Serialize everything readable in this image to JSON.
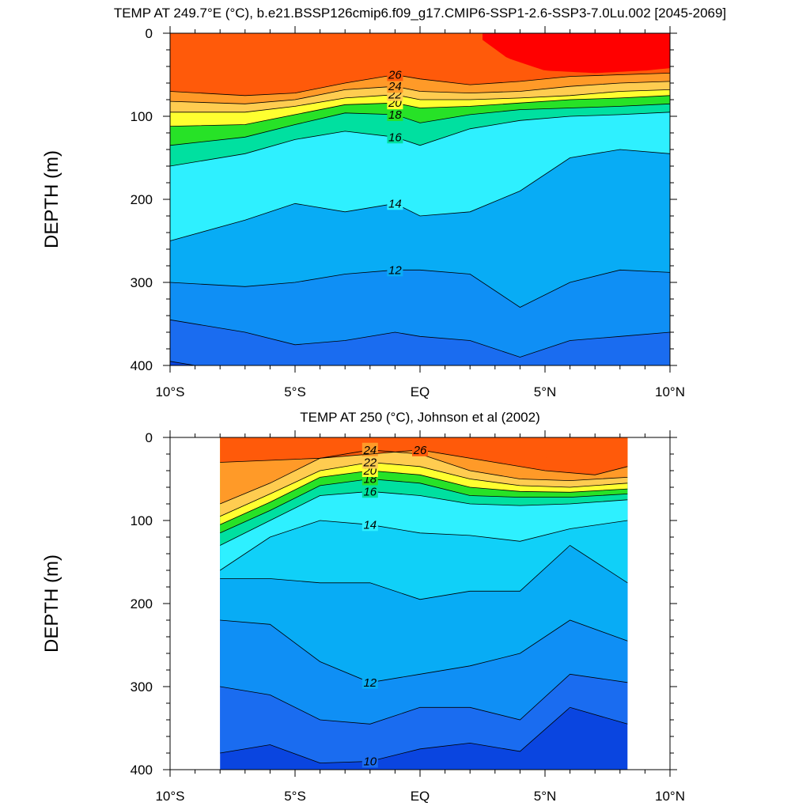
{
  "chart_data": [
    {
      "type": "contour",
      "title": "TEMP AT 249.7°E (°C), b.e21.BSSP126cmip6.f09_g17.CMIP6-SSP1-2.6-SSP3-7.0Lu.002 [2045-2069]",
      "xlabel": "",
      "ylabel": "DEPTH (m)",
      "xlim": [
        -10,
        10
      ],
      "ylim": [
        400,
        0
      ],
      "x_ticks": [
        -10,
        -5,
        0,
        5,
        10
      ],
      "x_tick_labels": [
        "10°S",
        "5°S",
        "EQ",
        "5°N",
        "10°N"
      ],
      "y_ticks": [
        0,
        100,
        200,
        300,
        400
      ],
      "y_tick_labels": [
        "0",
        "100",
        "200",
        "300",
        "400"
      ],
      "data_extent_x": [
        -10,
        10
      ],
      "isotherms": [
        {
          "value": 26,
          "label": "26",
          "x": [
            -10,
            -7,
            -5,
            -3,
            -1,
            0,
            2,
            4,
            6,
            8,
            10
          ],
          "y": [
            70,
            75,
            72,
            60,
            50,
            55,
            62,
            58,
            52,
            50,
            48
          ]
        },
        {
          "value": 24,
          "label": "24",
          "x": [
            -10,
            -7,
            -5,
            -3,
            -1,
            0,
            2,
            4,
            6,
            8,
            10
          ],
          "y": [
            82,
            85,
            80,
            68,
            64,
            70,
            72,
            70,
            64,
            60,
            58
          ]
        },
        {
          "value": 22,
          "label": "22",
          "x": [
            -10,
            -7,
            -5,
            -3,
            -1,
            0,
            2,
            4,
            6,
            8,
            10
          ],
          "y": [
            95,
            95,
            88,
            78,
            74,
            80,
            80,
            78,
            75,
            70,
            68
          ]
        },
        {
          "value": 20,
          "label": "20",
          "x": [
            -10,
            -7,
            -5,
            -3,
            -1,
            0,
            2,
            4,
            6,
            8,
            10
          ],
          "y": [
            112,
            110,
            98,
            86,
            84,
            90,
            88,
            84,
            80,
            78,
            75
          ]
        },
        {
          "value": 18,
          "label": "18",
          "x": [
            -10,
            -7,
            -5,
            -3,
            -1,
            0,
            2,
            4,
            6,
            8,
            10
          ],
          "y": [
            135,
            125,
            110,
            96,
            98,
            108,
            98,
            92,
            90,
            88,
            85
          ]
        },
        {
          "value": 16,
          "label": "16",
          "x": [
            -10,
            -7,
            -5,
            -3,
            -1,
            0,
            2,
            4,
            6,
            8,
            10
          ],
          "y": [
            160,
            145,
            128,
            118,
            125,
            135,
            115,
            105,
            100,
            98,
            95
          ]
        },
        {
          "value": 14,
          "label": "14",
          "x": [
            -10,
            -7,
            -5,
            -3,
            -1,
            0,
            2,
            4,
            6,
            8,
            10
          ],
          "y": [
            250,
            225,
            205,
            215,
            205,
            220,
            215,
            190,
            150,
            140,
            145
          ]
        },
        {
          "value": 12,
          "label": "12",
          "x": [
            -10,
            -7,
            -5,
            -3,
            -1,
            0,
            2,
            4,
            6,
            8,
            10
          ],
          "y": [
            300,
            305,
            300,
            290,
            285,
            285,
            290,
            330,
            300,
            285,
            288
          ]
        },
        {
          "value": 11,
          "label": "",
          "x": [
            -10,
            -7,
            -5,
            -3,
            -1,
            0,
            2,
            4,
            6,
            8,
            10
          ],
          "y": [
            345,
            360,
            375,
            370,
            360,
            365,
            370,
            390,
            370,
            365,
            360
          ]
        },
        {
          "value": 10,
          "label": "",
          "x": [
            -10,
            -9
          ],
          "y": [
            395,
            400
          ]
        }
      ],
      "regions": [
        {
          "temp_min": 28,
          "x": [
            2.5,
            3.5,
            5,
            7,
            9,
            10
          ],
          "y": [
            8,
            30,
            45,
            48,
            45,
            42
          ],
          "description": "warm core north of equator, upper 45 m"
        }
      ],
      "colorbar": {
        "shown": false
      }
    },
    {
      "type": "contour",
      "title": "TEMP AT 250 (°C), Johnson et al (2002)",
      "xlabel": "",
      "ylabel": "DEPTH (m)",
      "xlim": [
        -10,
        10
      ],
      "ylim": [
        400,
        0
      ],
      "x_ticks": [
        -10,
        -5,
        0,
        5,
        10
      ],
      "x_tick_labels": [
        "10°S",
        "5°S",
        "EQ",
        "5°N",
        "10°N"
      ],
      "y_ticks": [
        0,
        100,
        200,
        300,
        400
      ],
      "y_tick_labels": [
        "0",
        "100",
        "200",
        "300",
        "400"
      ],
      "data_extent_x": [
        -8,
        8.3
      ],
      "isotherms": [
        {
          "value": 26,
          "label": "26",
          "x": [
            -8,
            -4,
            0,
            3,
            5,
            7,
            8.3
          ],
          "y": [
            30,
            25,
            15,
            30,
            40,
            45,
            35
          ]
        },
        {
          "value": 24,
          "label": "24",
          "x": [
            -8,
            -6,
            -4,
            -2,
            0,
            2,
            4,
            6,
            8.3
          ],
          "y": [
            80,
            55,
            25,
            15,
            20,
            40,
            50,
            52,
            48
          ]
        },
        {
          "value": 22,
          "label": "22",
          "x": [
            -8,
            -6,
            -4,
            -2,
            0,
            2,
            4,
            6,
            8.3
          ],
          "y": [
            95,
            68,
            40,
            30,
            35,
            50,
            58,
            60,
            55
          ]
        },
        {
          "value": 20,
          "label": "20",
          "x": [
            -8,
            -6,
            -4,
            -2,
            0,
            2,
            4,
            6,
            8.3
          ],
          "y": [
            105,
            78,
            48,
            40,
            45,
            60,
            65,
            66,
            62
          ]
        },
        {
          "value": 18,
          "label": "18",
          "x": [
            -8,
            -6,
            -4,
            -2,
            0,
            2,
            4,
            6,
            8.3
          ],
          "y": [
            115,
            88,
            58,
            50,
            55,
            70,
            72,
            72,
            68
          ]
        },
        {
          "value": 16,
          "label": "16",
          "x": [
            -8,
            -6,
            -4,
            -2,
            0,
            2,
            4,
            6,
            8.3
          ],
          "y": [
            130,
            100,
            70,
            65,
            70,
            80,
            82,
            80,
            75
          ]
        },
        {
          "value": 14,
          "label": "14",
          "x": [
            -8,
            -6,
            -4,
            -2,
            0,
            2,
            4,
            6,
            8.3
          ],
          "y": [
            160,
            120,
            100,
            105,
            115,
            118,
            125,
            110,
            100
          ]
        },
        {
          "value": 13,
          "label": "",
          "x": [
            -8,
            -6,
            -4,
            -2,
            0,
            2,
            4,
            6,
            8.3
          ],
          "y": [
            170,
            170,
            175,
            175,
            195,
            185,
            185,
            130,
            175
          ]
        },
        {
          "value": 12,
          "label": "12",
          "x": [
            -8,
            -6,
            -4,
            -2,
            0,
            2,
            4,
            6,
            8.3
          ],
          "y": [
            220,
            225,
            270,
            295,
            285,
            275,
            260,
            220,
            245
          ]
        },
        {
          "value": 11,
          "label": "",
          "x": [
            -8,
            -6,
            -4,
            -2,
            0,
            2,
            4,
            6,
            8.3
          ],
          "y": [
            300,
            310,
            340,
            345,
            325,
            325,
            340,
            285,
            295
          ]
        },
        {
          "value": 10,
          "label": "10",
          "x": [
            -8,
            -6,
            -4,
            -2,
            0,
            2,
            4,
            6,
            8.3
          ],
          "y": [
            380,
            370,
            392,
            390,
            375,
            368,
            378,
            325,
            345
          ]
        }
      ],
      "regions": [
        {
          "temp_min": 26,
          "x": [
            2.6,
            3.5,
            6,
            7.5,
            8.3
          ],
          "y": [
            0,
            15,
            30,
            40,
            35
          ],
          "description": "warmest water in upper north corner"
        }
      ],
      "colorbar": {
        "shown": false
      }
    }
  ]
}
